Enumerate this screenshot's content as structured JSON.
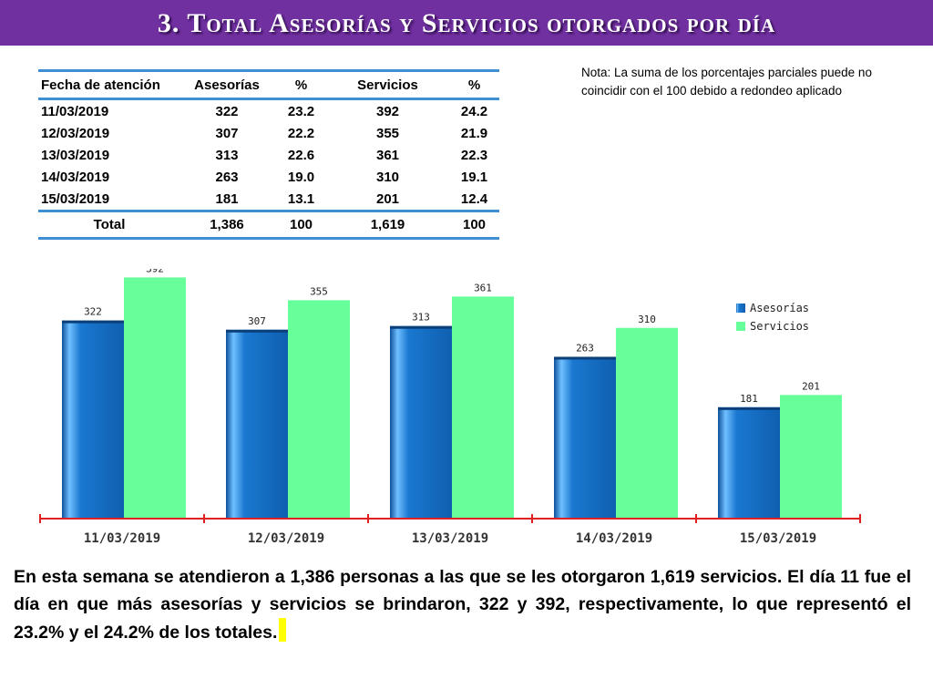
{
  "header": {
    "title": "3. Total Asesorías y Servicios otorgados por día"
  },
  "table": {
    "headers": [
      "Fecha de atención",
      "Asesorías",
      "%",
      "Servicios",
      "%"
    ],
    "rows": [
      [
        "11/03/2019",
        "322",
        "23.2",
        "392",
        "24.2"
      ],
      [
        "12/03/2019",
        "307",
        "22.2",
        "355",
        "21.9"
      ],
      [
        "13/03/2019",
        "313",
        "22.6",
        "361",
        "22.3"
      ],
      [
        "14/03/2019",
        "263",
        "19.0",
        "310",
        "19.1"
      ],
      [
        "15/03/2019",
        "181",
        "13.1",
        "201",
        "12.4"
      ]
    ],
    "total": [
      "Total",
      "1,386",
      "100",
      "1,619",
      "100"
    ]
  },
  "note": "Nota: La suma de los porcentajes parciales puede no coincidir con el 100 debido a redondeo aplicado",
  "chart_data": {
    "type": "bar",
    "categories": [
      "11/03/2019",
      "12/03/2019",
      "13/03/2019",
      "14/03/2019",
      "15/03/2019"
    ],
    "series": [
      {
        "name": "Asesorías",
        "values": [
          322,
          307,
          313,
          263,
          181
        ],
        "color": "#1a6fc4"
      },
      {
        "name": "Servicios",
        "values": [
          392,
          355,
          361,
          310,
          201
        ],
        "color": "#66ff99"
      }
    ],
    "title": "",
    "xlabel": "",
    "ylabel": "",
    "ylim": [
      0,
      400
    ],
    "grid": false,
    "legend": "top-right",
    "axis_color": "#e02020"
  },
  "summary": "En esta semana se atendieron a 1,386 personas a las que se les otorgaron 1,619 servicios. El día 11 fue el día en que más asesorías y servicios se brindaron, 322 y 392, respectivamente, lo que representó  el 23.2% y el 24.2% de los totales."
}
